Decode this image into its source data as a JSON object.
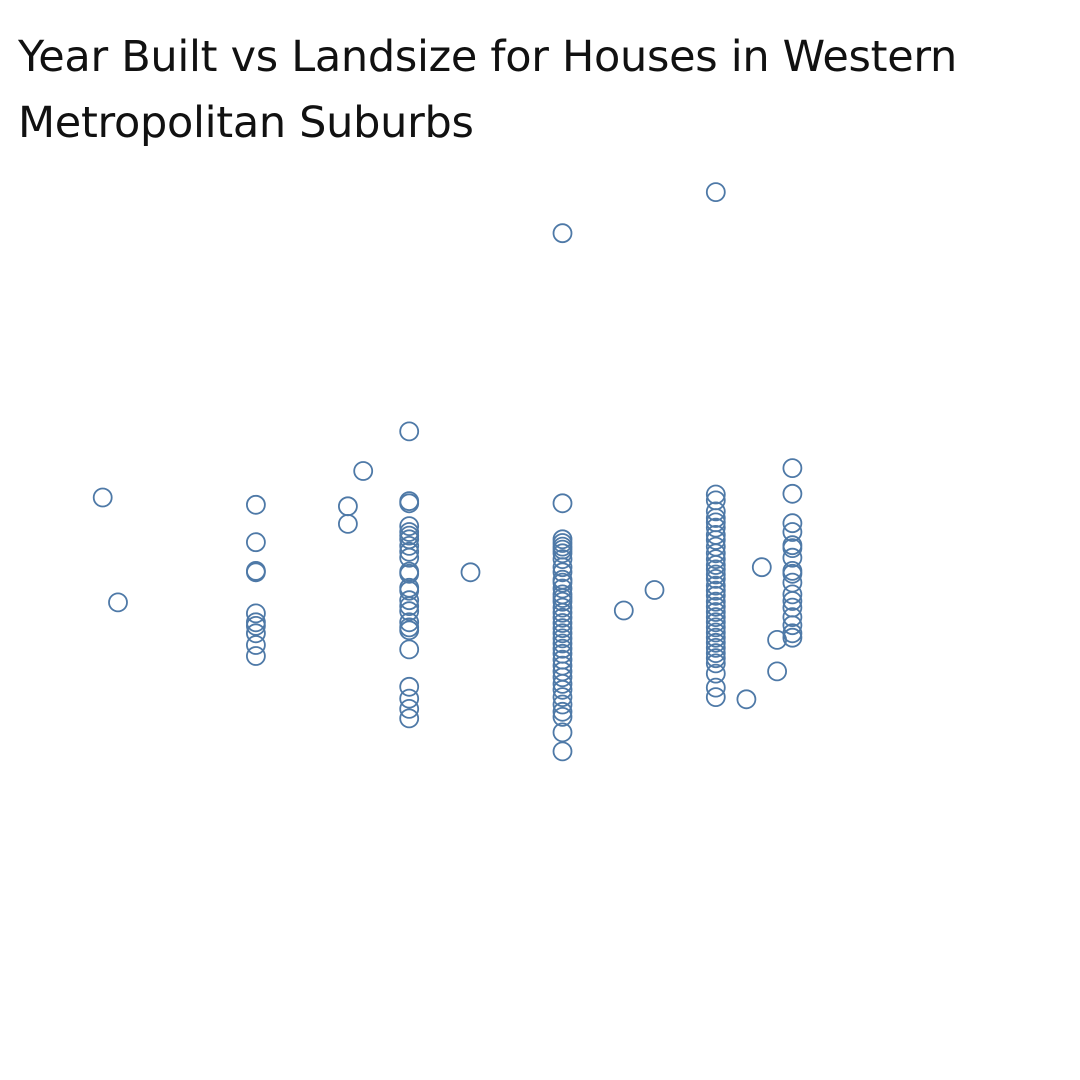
{
  "chart_data": {
    "type": "scatter",
    "title": "Year Built vs Landsize for Houses in Western Metropolitan Suburbs",
    "xlabel": "",
    "ylabel": "",
    "axes_visible": false,
    "grid": false,
    "marker": "open-circle",
    "color": "#4e79a7",
    "xlim": [
      1896,
      2018
    ],
    "ylim": [
      0,
      1000
    ],
    "series": [
      {
        "name": "Houses",
        "points": [
          [
            1900,
            592
          ],
          [
            1902,
            449
          ],
          [
            1920,
            582
          ],
          [
            1920,
            531
          ],
          [
            1920,
            492
          ],
          [
            1920,
            490
          ],
          [
            1920,
            434
          ],
          [
            1920,
            422
          ],
          [
            1920,
            417
          ],
          [
            1920,
            407
          ],
          [
            1920,
            391
          ],
          [
            1920,
            376
          ],
          [
            1932,
            580
          ],
          [
            1932,
            556
          ],
          [
            1934,
            628
          ],
          [
            1940,
            682
          ],
          [
            1940,
            587
          ],
          [
            1940,
            584
          ],
          [
            1940,
            553
          ],
          [
            1940,
            545
          ],
          [
            1940,
            540
          ],
          [
            1940,
            535
          ],
          [
            1940,
            526
          ],
          [
            1940,
            518
          ],
          [
            1940,
            510
          ],
          [
            1940,
            491
          ],
          [
            1940,
            488
          ],
          [
            1940,
            469
          ],
          [
            1940,
            465
          ],
          [
            1940,
            452
          ],
          [
            1940,
            444
          ],
          [
            1940,
            437
          ],
          [
            1940,
            422
          ],
          [
            1940,
            415
          ],
          [
            1940,
            411
          ],
          [
            1940,
            385
          ],
          [
            1940,
            334
          ],
          [
            1940,
            318
          ],
          [
            1940,
            304
          ],
          [
            1940,
            291
          ],
          [
            1948,
            490
          ],
          [
            1960,
            952
          ],
          [
            1960,
            584
          ],
          [
            1960,
            535
          ],
          [
            1960,
            530
          ],
          [
            1960,
            525
          ],
          [
            1960,
            521
          ],
          [
            1960,
            516
          ],
          [
            1960,
            508
          ],
          [
            1960,
            497
          ],
          [
            1960,
            490
          ],
          [
            1960,
            480
          ],
          [
            1960,
            476
          ],
          [
            1960,
            468
          ],
          [
            1960,
            460
          ],
          [
            1960,
            455
          ],
          [
            1960,
            450
          ],
          [
            1960,
            442
          ],
          [
            1960,
            435
          ],
          [
            1960,
            428
          ],
          [
            1960,
            421
          ],
          [
            1960,
            414
          ],
          [
            1960,
            407
          ],
          [
            1960,
            400
          ],
          [
            1960,
            393
          ],
          [
            1960,
            386
          ],
          [
            1960,
            379
          ],
          [
            1960,
            371
          ],
          [
            1960,
            363
          ],
          [
            1960,
            355
          ],
          [
            1960,
            347
          ],
          [
            1960,
            338
          ],
          [
            1960,
            330
          ],
          [
            1960,
            320
          ],
          [
            1960,
            310
          ],
          [
            1960,
            300
          ],
          [
            1960,
            293
          ],
          [
            1960,
            272
          ],
          [
            1960,
            246
          ],
          [
            1968,
            438
          ],
          [
            1972,
            466
          ],
          [
            1980,
            1008
          ],
          [
            1980,
            596
          ],
          [
            1980,
            588
          ],
          [
            1980,
            573
          ],
          [
            1980,
            564
          ],
          [
            1980,
            558
          ],
          [
            1980,
            551
          ],
          [
            1980,
            541
          ],
          [
            1980,
            534
          ],
          [
            1980,
            525
          ],
          [
            1980,
            516
          ],
          [
            1980,
            508
          ],
          [
            1980,
            500
          ],
          [
            1980,
            494
          ],
          [
            1980,
            487
          ],
          [
            1980,
            481
          ],
          [
            1980,
            472
          ],
          [
            1980,
            465
          ],
          [
            1980,
            458
          ],
          [
            1980,
            450
          ],
          [
            1980,
            443
          ],
          [
            1980,
            436
          ],
          [
            1980,
            429
          ],
          [
            1980,
            422
          ],
          [
            1980,
            415
          ],
          [
            1980,
            408
          ],
          [
            1980,
            401
          ],
          [
            1980,
            394
          ],
          [
            1980,
            387
          ],
          [
            1980,
            380
          ],
          [
            1980,
            373
          ],
          [
            1980,
            366
          ],
          [
            1980,
            352
          ],
          [
            1980,
            333
          ],
          [
            1980,
            320
          ],
          [
            1984,
            317
          ],
          [
            1986,
            497
          ],
          [
            1988,
            398
          ],
          [
            1988,
            355
          ],
          [
            1990,
            632
          ],
          [
            1990,
            597
          ],
          [
            1990,
            557
          ],
          [
            1990,
            545
          ],
          [
            1990,
            527
          ],
          [
            1990,
            523
          ],
          [
            1990,
            510
          ],
          [
            1990,
            492
          ],
          [
            1990,
            488
          ],
          [
            1990,
            476
          ],
          [
            1990,
            460
          ],
          [
            1990,
            451
          ],
          [
            1990,
            442
          ],
          [
            1990,
            429
          ],
          [
            1990,
            418
          ],
          [
            1990,
            407
          ],
          [
            1990,
            401
          ]
        ]
      }
    ]
  }
}
